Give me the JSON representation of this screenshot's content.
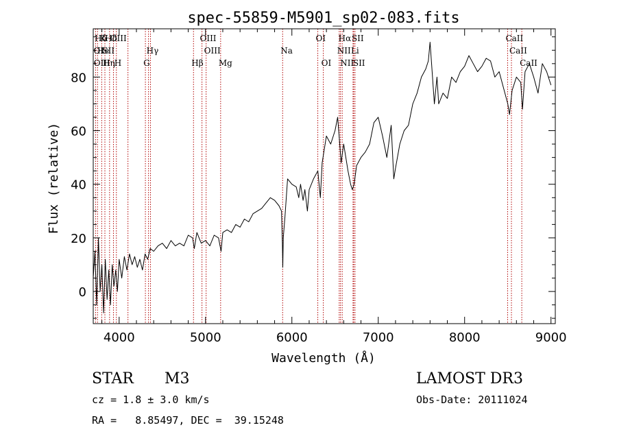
{
  "chart_data": {
    "type": "line",
    "title": "spec-55859-M5901_sp02-083.fits",
    "xlabel": "Wavelength (Å)",
    "ylabel": "Flux (relative)",
    "xlim": [
      3700,
      9050
    ],
    "ylim": [
      -12,
      98
    ],
    "x_ticks": [
      4000,
      5000,
      6000,
      7000,
      8000,
      9000
    ],
    "y_ticks": [
      0,
      20,
      40,
      60,
      80
    ],
    "series": [
      {
        "name": "flux",
        "x": [
          3700,
          3720,
          3740,
          3760,
          3780,
          3800,
          3820,
          3840,
          3860,
          3880,
          3900,
          3920,
          3940,
          3960,
          3980,
          4000,
          4030,
          4060,
          4090,
          4120,
          4150,
          4180,
          4210,
          4240,
          4270,
          4300,
          4330,
          4360,
          4400,
          4450,
          4500,
          4550,
          4600,
          4650,
          4700,
          4750,
          4800,
          4850,
          4870,
          4900,
          4950,
          5000,
          5050,
          5100,
          5150,
          5180,
          5200,
          5250,
          5300,
          5350,
          5400,
          5450,
          5500,
          5550,
          5600,
          5650,
          5700,
          5750,
          5800,
          5850,
          5880,
          5890,
          5895,
          5900,
          5920,
          5950,
          6000,
          6050,
          6080,
          6100,
          6130,
          6150,
          6180,
          6200,
          6250,
          6300,
          6330,
          6350,
          6400,
          6450,
          6500,
          6530,
          6550,
          6570,
          6600,
          6650,
          6680,
          6700,
          6720,
          6750,
          6800,
          6850,
          6900,
          6950,
          7000,
          7050,
          7100,
          7150,
          7180,
          7200,
          7250,
          7300,
          7350,
          7400,
          7450,
          7500,
          7550,
          7580,
          7600,
          7620,
          7650,
          7680,
          7700,
          7750,
          7800,
          7850,
          7900,
          7950,
          8000,
          8050,
          8100,
          8150,
          8200,
          8250,
          8300,
          8350,
          8400,
          8450,
          8500,
          8520,
          8550,
          8600,
          8650,
          8670,
          8700,
          8750,
          8800,
          8850,
          8900,
          8950,
          9000
        ],
        "values": [
          5,
          15,
          -5,
          20,
          0,
          10,
          -8,
          12,
          -3,
          8,
          -5,
          10,
          2,
          8,
          0,
          12,
          5,
          13,
          8,
          14,
          10,
          13,
          9,
          12,
          8,
          14,
          12,
          16,
          15,
          17,
          18,
          16,
          19,
          17,
          18,
          17,
          21,
          20,
          16,
          22,
          18,
          19,
          17,
          21,
          20,
          15,
          22,
          23,
          22,
          25,
          24,
          27,
          26,
          29,
          30,
          31,
          33,
          35,
          34,
          32,
          30,
          18,
          9,
          20,
          28,
          42,
          40,
          39,
          35,
          40,
          34,
          38,
          30,
          38,
          42,
          45,
          35,
          48,
          58,
          55,
          60,
          65,
          57,
          48,
          55,
          45,
          40,
          38,
          40,
          47,
          50,
          52,
          55,
          63,
          65,
          58,
          50,
          62,
          42,
          46,
          55,
          60,
          62,
          70,
          74,
          80,
          83,
          86,
          93,
          84,
          70,
          80,
          70,
          74,
          72,
          80,
          78,
          82,
          84,
          88,
          85,
          82,
          84,
          87,
          86,
          80,
          82,
          76,
          70,
          66,
          75,
          80,
          78,
          68,
          82,
          85,
          80,
          74,
          85,
          82,
          77
        ]
      }
    ],
    "spectral_lines": [
      {
        "label": "Hδ",
        "x": 3740,
        "row": 0
      },
      {
        "label": "K",
        "x": 3800,
        "row": 0
      },
      {
        "label": "Hδ",
        "x": 3860,
        "row": 0
      },
      {
        "label": "OIII",
        "x": 3920,
        "row": 0
      },
      {
        "label": "OIII",
        "x": 4958,
        "row": 0
      },
      {
        "label": "OI",
        "x": 6300,
        "row": 0
      },
      {
        "label": "Hα",
        "x": 6563,
        "row": 0
      },
      {
        "label": "SII",
        "x": 6716,
        "row": 0
      },
      {
        "label": "CaII",
        "x": 8498,
        "row": 0
      },
      {
        "label": "OI",
        "x": 3727,
        "row": 1
      },
      {
        "label": "He",
        "x": 3770,
        "row": 1
      },
      {
        "label": "SII",
        "x": 3830,
        "row": 1
      },
      {
        "label": "Hγ",
        "x": 4340,
        "row": 1
      },
      {
        "label": "OIII",
        "x": 5007,
        "row": 1
      },
      {
        "label": "Na",
        "x": 5893,
        "row": 1
      },
      {
        "label": "NII",
        "x": 6548,
        "row": 1
      },
      {
        "label": "Li",
        "x": 6708,
        "row": 1
      },
      {
        "label": "CaII",
        "x": 8542,
        "row": 1
      },
      {
        "label": "OIII",
        "x": 3730,
        "row": 2
      },
      {
        "label": "Hη",
        "x": 3835,
        "row": 2
      },
      {
        "label": "H",
        "x": 3968,
        "row": 2
      },
      {
        "label": "G",
        "x": 4304,
        "row": 2
      },
      {
        "label": "Hβ",
        "x": 4861,
        "row": 2
      },
      {
        "label": "Mg",
        "x": 5175,
        "row": 2
      },
      {
        "label": "OI",
        "x": 6364,
        "row": 2
      },
      {
        "label": "NII",
        "x": 6583,
        "row": 2
      },
      {
        "label": "SII",
        "x": 6731,
        "row": 2
      },
      {
        "label": "CaII",
        "x": 8662,
        "row": 2
      }
    ],
    "line_marker_positions": [
      3727,
      3750,
      3798,
      3835,
      3889,
      3934,
      3968,
      4102,
      4304,
      4340,
      4363,
      4861,
      4959,
      5007,
      5175,
      5893,
      6300,
      6364,
      6548,
      6563,
      6583,
      6708,
      6716,
      6731,
      8498,
      8542,
      8662
    ]
  },
  "info": {
    "object_class": "STAR",
    "subclass": "M3",
    "survey": "LAMOST DR3",
    "cz": "cz = 1.8 ± 3.0 km/s",
    "obs_date": "Obs-Date: 20111024",
    "coords": "RA =   8.85497, DEC =  39.15248"
  },
  "colors": {
    "line_marker": "#b00000",
    "spectrum": "#000000"
  }
}
